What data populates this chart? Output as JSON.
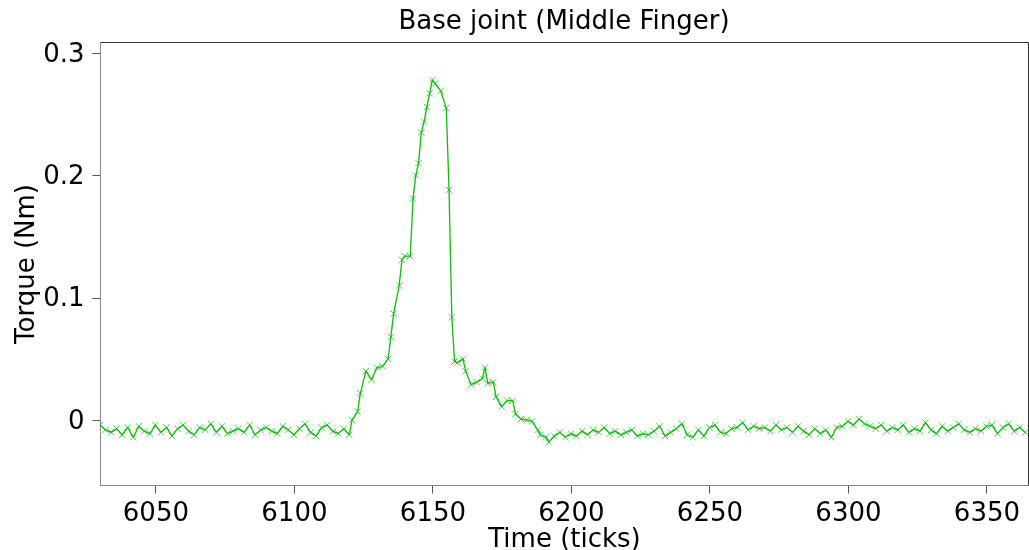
{
  "chart_data": {
    "type": "line",
    "title": "Base joint (Middle Finger)",
    "xlabel": "Time (ticks)",
    "ylabel": "Torque (Nm)",
    "xlim": [
      6030,
      6365
    ],
    "ylim": [
      -0.053,
      0.309
    ],
    "xticks": [
      6050,
      6100,
      6150,
      6200,
      6250,
      6300,
      6350
    ],
    "yticks": [
      0,
      0.1,
      0.2,
      0.3
    ],
    "grid": false,
    "legend": false,
    "marker": "cross",
    "line_style": "solid",
    "series": [
      {
        "color": "#11bb11",
        "x": [
          6030,
          6032,
          6034,
          6036,
          6038,
          6040,
          6042,
          6044,
          6046,
          6048,
          6050,
          6052,
          6054,
          6056,
          6058,
          6060,
          6062,
          6064,
          6066,
          6068,
          6070,
          6072,
          6074,
          6076,
          6078,
          6080,
          6082,
          6084,
          6086,
          6088,
          6090,
          6092,
          6094,
          6096,
          6098,
          6100,
          6102,
          6104,
          6106,
          6108,
          6110,
          6112,
          6114,
          6116,
          6118,
          6120,
          6121,
          6123,
          6124,
          6126,
          6128,
          6130,
          6132,
          6134,
          6135,
          6136,
          6138,
          6139,
          6140,
          6142,
          6143,
          6144,
          6145,
          6146,
          6147,
          6148,
          6149,
          6150,
          6151,
          6153,
          6155,
          6156,
          6157,
          6158,
          6159,
          6161,
          6162,
          6164,
          6166,
          6168,
          6169,
          6170,
          6172,
          6173,
          6175,
          6177,
          6179,
          6180,
          6182,
          6184,
          6186,
          6188,
          6189,
          6191,
          6192,
          6194,
          6196,
          6198,
          6200,
          6202,
          6204,
          6206,
          6208,
          6210,
          6212,
          6214,
          6216,
          6218,
          6220,
          6222,
          6224,
          6226,
          6228,
          6230,
          6232,
          6234,
          6236,
          6238,
          6240,
          6242,
          6244,
          6246,
          6248,
          6250,
          6252,
          6254,
          6256,
          6258,
          6260,
          6262,
          6264,
          6266,
          6268,
          6270,
          6272,
          6274,
          6276,
          6278,
          6280,
          6282,
          6284,
          6286,
          6288,
          6290,
          6292,
          6294,
          6296,
          6298,
          6300,
          6302,
          6304,
          6306,
          6308,
          6310,
          6312,
          6314,
          6316,
          6318,
          6320,
          6322,
          6324,
          6326,
          6328,
          6330,
          6332,
          6334,
          6336,
          6338,
          6340,
          6342,
          6344,
          6346,
          6348,
          6350,
          6352,
          6354,
          6356,
          6358,
          6360,
          6362,
          6364
        ],
        "values": [
          -0.004,
          -0.008,
          -0.01,
          -0.007,
          -0.012,
          -0.006,
          -0.014,
          -0.005,
          -0.009,
          -0.011,
          -0.004,
          -0.01,
          -0.006,
          -0.013,
          -0.007,
          -0.004,
          -0.009,
          -0.012,
          -0.006,
          -0.008,
          -0.003,
          -0.01,
          -0.005,
          -0.011,
          -0.009,
          -0.007,
          -0.01,
          -0.004,
          -0.012,
          -0.008,
          -0.006,
          -0.009,
          -0.011,
          -0.005,
          -0.008,
          -0.012,
          -0.007,
          -0.003,
          -0.01,
          -0.013,
          -0.006,
          -0.004,
          -0.009,
          -0.011,
          -0.007,
          -0.012,
          0,
          0.007,
          0.022,
          0.04,
          0.033,
          0.043,
          0.044,
          0.05,
          0.068,
          0.087,
          0.11,
          0.131,
          0.134,
          0.134,
          0.181,
          0.2,
          0.21,
          0.235,
          0.244,
          0.256,
          0.267,
          0.278,
          0.275,
          0.269,
          0.255,
          0.188,
          0.084,
          0.048,
          0.047,
          0.05,
          0.04,
          0.029,
          0.031,
          0.034,
          0.043,
          0.03,
          0.031,
          0.019,
          0.011,
          0.016,
          0.016,
          0.005,
          0.001,
          0.0,
          -0.001,
          -0.008,
          -0.012,
          -0.014,
          -0.018,
          -0.013,
          -0.01,
          -0.014,
          -0.011,
          -0.013,
          -0.009,
          -0.012,
          -0.008,
          -0.01,
          -0.006,
          -0.011,
          -0.009,
          -0.012,
          -0.01,
          -0.008,
          -0.013,
          -0.011,
          -0.012,
          -0.009,
          -0.005,
          -0.013,
          -0.01,
          -0.007,
          -0.003,
          -0.012,
          -0.014,
          -0.008,
          -0.013,
          -0.006,
          -0.004,
          -0.01,
          -0.011,
          -0.007,
          -0.006,
          -0.002,
          -0.008,
          -0.005,
          -0.007,
          -0.006,
          -0.009,
          -0.004,
          -0.008,
          -0.006,
          -0.01,
          -0.005,
          -0.009,
          -0.012,
          -0.007,
          -0.011,
          -0.008,
          -0.014,
          -0.006,
          -0.005,
          -0.001,
          -0.004,
          0.001,
          -0.003,
          -0.005,
          -0.007,
          -0.004,
          -0.009,
          -0.006,
          -0.008,
          -0.004,
          -0.01,
          -0.007,
          -0.009,
          -0.002,
          -0.008,
          -0.011,
          -0.005,
          -0.009,
          -0.006,
          -0.003,
          -0.008,
          -0.01,
          -0.007,
          -0.009,
          -0.005,
          -0.004,
          -0.011,
          -0.006,
          -0.003,
          -0.009,
          -0.006,
          -0.01
        ]
      }
    ]
  }
}
